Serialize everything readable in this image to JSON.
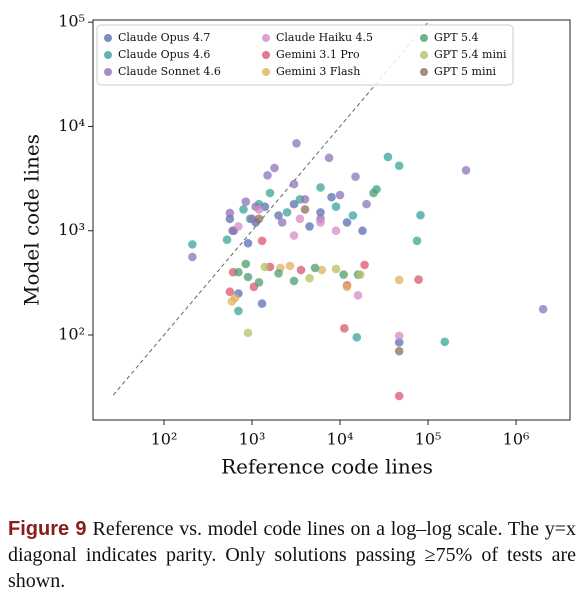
{
  "chart_data": {
    "type": "scatter",
    "x_label": "Reference code lines",
    "y_label": "Model code lines",
    "xscale": "log",
    "yscale": "log",
    "xlim": [
      15.6,
      4100000
    ],
    "ylim": [
      15.3,
      105000
    ],
    "xticks": [
      {
        "value": 100,
        "label": "10²"
      },
      {
        "value": 1000,
        "label": "10³"
      },
      {
        "value": 10000,
        "label": "10⁴"
      },
      {
        "value": 100000,
        "label": "10⁵"
      },
      {
        "value": 1000000,
        "label": "10⁶"
      }
    ],
    "yticks": [
      {
        "value": 100,
        "label": "10²"
      },
      {
        "value": 1000,
        "label": "10³"
      },
      {
        "value": 10000,
        "label": "10⁴"
      },
      {
        "value": 100000,
        "label": "10⁵"
      }
    ],
    "legend": "upper left",
    "series": [
      {
        "name": "Claude Opus 4.7",
        "color": "#5a6fb0",
        "x": [
          560,
          620,
          900,
          1100,
          1400,
          2000,
          3000,
          4500,
          6000,
          8000,
          12000,
          18000,
          47000,
          700,
          1300
        ],
        "values": [
          1300,
          1000,
          760,
          1200,
          1700,
          1400,
          1800,
          1100,
          1500,
          2100,
          1200,
          1000,
          85,
          250,
          200
        ]
      },
      {
        "name": "Claude Opus 4.6",
        "color": "#3aa39a",
        "x": [
          210,
          520,
          700,
          950,
          1200,
          1600,
          2500,
          3500,
          6000,
          9000,
          14000,
          26000,
          35000,
          47000,
          82000,
          75000,
          155000,
          15500,
          800
        ],
        "values": [
          740,
          820,
          170,
          1300,
          1800,
          2300,
          1500,
          2000,
          2600,
          1700,
          1400,
          2500,
          5100,
          4200,
          1410,
          800,
          86,
          95,
          1600
        ]
      },
      {
        "name": "Claude Sonnet 4.6",
        "color": "#8e73b8",
        "x": [
          210,
          560,
          600,
          850,
          1000,
          1100,
          1500,
          2200,
          3200,
          4000,
          6000,
          7500,
          10000,
          15000,
          20000,
          270000,
          2030000,
          1800,
          3000
        ],
        "values": [
          560,
          1480,
          1000,
          1900,
          1300,
          1700,
          3400,
          1200,
          6900,
          2000,
          1300,
          5000,
          2200,
          3300,
          1800,
          3800,
          177,
          4000,
          2800
        ]
      },
      {
        "name": "Claude Haiku 4.5",
        "color": "#d68ac4",
        "x": [
          700,
          1200,
          3000,
          6000,
          9000,
          16000,
          47000,
          3500
        ],
        "values": [
          1100,
          1600,
          900,
          1200,
          1000,
          240,
          98,
          1300
        ]
      },
      {
        "name": "Gemini 3.1 Pro",
        "color": "#d9566f",
        "x": [
          560,
          610,
          1050,
          1600,
          3600,
          11200,
          12000,
          19000,
          47000,
          78000,
          1300
        ],
        "values": [
          260,
          400,
          290,
          450,
          420,
          116,
          300,
          470,
          26,
          340,
          800
        ]
      },
      {
        "name": "Gemini 3 Flash",
        "color": "#e0b060",
        "x": [
          590,
          640,
          2100,
          2700,
          6200,
          12000,
          47000
        ],
        "values": [
          210,
          226,
          440,
          460,
          420,
          290,
          337
        ]
      },
      {
        "name": "GPT 5.4",
        "color": "#4f9e6e",
        "x": [
          700,
          850,
          1200,
          2000,
          3000,
          5200,
          11000,
          16000,
          24000,
          900
        ],
        "values": [
          400,
          480,
          320,
          390,
          330,
          440,
          380,
          380,
          2300,
          360
        ]
      },
      {
        "name": "GPT 5.4 mini",
        "color": "#b6bf63",
        "x": [
          900,
          1400,
          4500,
          9000,
          17000
        ],
        "values": [
          105,
          450,
          350,
          430,
          380
        ]
      },
      {
        "name": "GPT 5 mini",
        "color": "#8e7055",
        "x": [
          1200,
          47000,
          4000
        ],
        "values": [
          1300,
          70,
          1600
        ]
      }
    ]
  },
  "caption": {
    "label": "Figure 9",
    "text": "Reference vs. model code lines on a log–log scale. The y=x diagonal indicates parity. Only solutions passing ≥75% of tests are shown."
  }
}
